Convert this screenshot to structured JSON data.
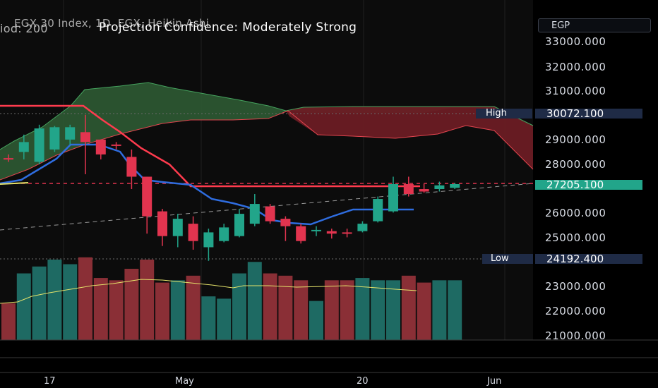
{
  "overlay": {
    "title": "EGX 30 Index, 1D, EGX, Heikin Ashi",
    "subtitle_prefix": "iod: 200",
    "headline": "Projection Confidence: Moderately Strong",
    "currency": "EGP"
  },
  "price_axis": {
    "labels": [
      "33000.000",
      "32000.000",
      "31000.000",
      "29000.000",
      "28000.000",
      "26000.000",
      "25000.000",
      "23000.000",
      "22000.000",
      "21000.000"
    ]
  },
  "time_axis": {
    "labels": [
      "17",
      "May",
      "20",
      "Jun"
    ]
  },
  "markers": {
    "high_label": "High",
    "high_value": "30072.100",
    "low_label": "Low",
    "low_value": "24192.400",
    "last_value": "27205.100"
  },
  "colors": {
    "bull": "#22a58a",
    "bear": "#e2344f",
    "bull_volume": "#1e6a63",
    "bear_volume": "#8a2f36",
    "blue_line": "#2f6de0",
    "red_line": "#ff3b4e",
    "cloud_green": "#2e5a33",
    "cloud_red": "#6b1c24",
    "volume_ma": "#e5e36a"
  },
  "chart_data": {
    "type": "candlestick",
    "ylim": [
      21000,
      33600
    ],
    "candles": [
      {
        "o": 28350,
        "h": 28500,
        "l": 28200,
        "c": 28300
      },
      {
        "o": 28600,
        "h": 29300,
        "l": 28300,
        "c": 29000
      },
      {
        "o": 28200,
        "h": 29700,
        "l": 28100,
        "c": 29550
      },
      {
        "o": 28700,
        "h": 29650,
        "l": 28600,
        "c": 29600
      },
      {
        "o": 29100,
        "h": 29700,
        "l": 28900,
        "c": 29600
      },
      {
        "o": 29400,
        "h": 30100,
        "l": 27700,
        "c": 29000
      },
      {
        "o": 29100,
        "h": 29100,
        "l": 28300,
        "c": 28500
      },
      {
        "o": 28900,
        "h": 29000,
        "l": 28700,
        "c": 28850
      },
      {
        "o": 28400,
        "h": 28700,
        "l": 27100,
        "c": 27600
      },
      {
        "o": 27600,
        "h": 27600,
        "l": 25300,
        "c": 26000
      },
      {
        "o": 26200,
        "h": 26300,
        "l": 24800,
        "c": 25200
      },
      {
        "o": 25200,
        "h": 26100,
        "l": 24750,
        "c": 25900
      },
      {
        "o": 25700,
        "h": 26000,
        "l": 24650,
        "c": 25000
      },
      {
        "o": 24750,
        "h": 25500,
        "l": 24200,
        "c": 25350
      },
      {
        "o": 25000,
        "h": 25700,
        "l": 24950,
        "c": 25550
      },
      {
        "o": 25200,
        "h": 26300,
        "l": 25150,
        "c": 26100
      },
      {
        "o": 25700,
        "h": 26900,
        "l": 25600,
        "c": 26500
      },
      {
        "o": 26400,
        "h": 26500,
        "l": 25700,
        "c": 25800
      },
      {
        "o": 25900,
        "h": 26000,
        "l": 25000,
        "c": 25600
      },
      {
        "o": 25600,
        "h": 25700,
        "l": 24900,
        "c": 25000
      },
      {
        "o": 25400,
        "h": 25600,
        "l": 25200,
        "c": 25450
      },
      {
        "o": 25400,
        "h": 25500,
        "l": 25100,
        "c": 25300
      },
      {
        "o": 25350,
        "h": 25500,
        "l": 25150,
        "c": 25300
      },
      {
        "o": 25400,
        "h": 25800,
        "l": 25350,
        "c": 25700
      },
      {
        "o": 25800,
        "h": 26800,
        "l": 25750,
        "c": 26700
      },
      {
        "o": 26200,
        "h": 27600,
        "l": 26150,
        "c": 27300
      },
      {
        "o": 27300,
        "h": 27600,
        "l": 26800,
        "c": 26900
      },
      {
        "o": 27100,
        "h": 27300,
        "l": 26950,
        "c": 27000
      },
      {
        "o": 27100,
        "h": 27400,
        "l": 27000,
        "c": 27250
      },
      {
        "o": 27150,
        "h": 27350,
        "l": 27100,
        "c": 27300
      }
    ],
    "volume": [
      22600,
      23900,
      24200,
      24500,
      24300,
      24600,
      23700,
      23600,
      24100,
      24500,
      23500,
      23600,
      23800,
      22900,
      22800,
      23900,
      24400,
      23900,
      23800,
      23600,
      22700,
      23600,
      23600,
      23700,
      23600,
      23600,
      23800,
      23500,
      23600,
      23600
    ],
    "ylim_volume": [
      21000,
      24500
    ]
  }
}
